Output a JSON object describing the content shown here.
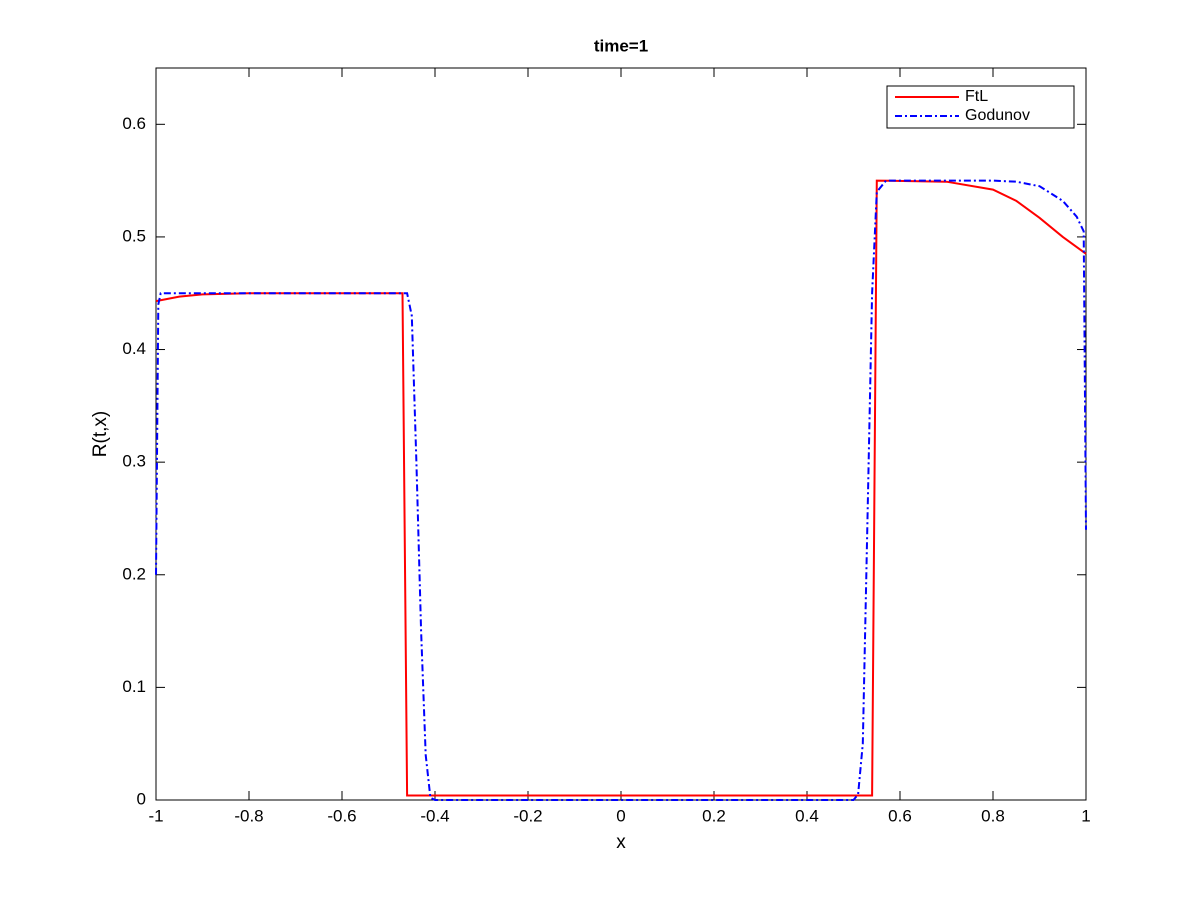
{
  "chart_data": {
    "type": "line",
    "title": "time=1",
    "x_label": "x",
    "y_label": "R(t,x)",
    "xlim": [
      -1,
      1
    ],
    "xticks": [
      -1,
      -0.8,
      -0.6,
      -0.4,
      -0.2,
      0,
      0.2,
      0.4,
      0.6,
      0.8,
      1
    ],
    "ylim": [
      0,
      0.65
    ],
    "yticks": [
      0,
      0.1,
      0.2,
      0.3,
      0.4,
      0.5,
      0.6
    ],
    "legend": "upper right",
    "series": [
      {
        "name": "FtL",
        "color": "#ff0000",
        "dash": "solid",
        "x": [
          -1,
          -0.95,
          -0.9,
          -0.8,
          -0.47,
          -0.46,
          0.54,
          0.55,
          0.7,
          0.8,
          0.85,
          0.9,
          0.95,
          1
        ],
        "values": [
          0.443,
          0.447,
          0.449,
          0.45,
          0.45,
          0.004,
          0.004,
          0.55,
          0.549,
          0.542,
          0.532,
          0.517,
          0.5,
          0.485
        ]
      },
      {
        "name": "Godunov",
        "color": "#0000ff",
        "dash": "dashdot",
        "x": [
          -1,
          -0.995,
          -0.99,
          -0.46,
          -0.45,
          -0.44,
          -0.43,
          -0.42,
          -0.41,
          -0.4,
          0.5,
          0.51,
          0.52,
          0.53,
          0.54,
          0.55,
          0.57,
          0.8,
          0.85,
          0.9,
          0.95,
          0.98,
          0.995,
          1
        ],
        "values": [
          0.2,
          0.44,
          0.45,
          0.45,
          0.43,
          0.3,
          0.15,
          0.04,
          0.002,
          0,
          0,
          0.005,
          0.05,
          0.25,
          0.45,
          0.54,
          0.55,
          0.55,
          0.549,
          0.545,
          0.532,
          0.518,
          0.505,
          0.24
        ]
      }
    ]
  }
}
